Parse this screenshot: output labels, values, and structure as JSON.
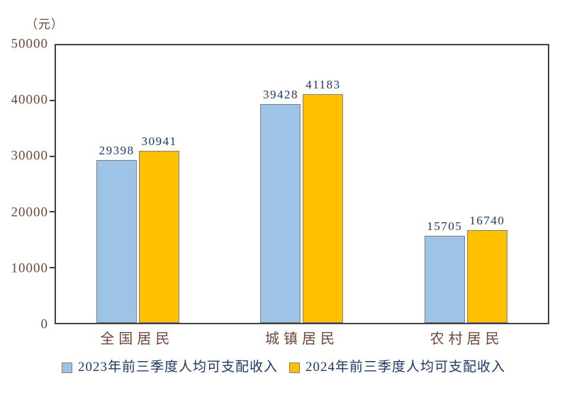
{
  "unit_label": "（元）",
  "colors": {
    "series_2023": "#9DC3E6",
    "series_2024": "#FFC000",
    "bar_border": "#7F7F7F",
    "axis_line": "#404040",
    "axis_text": "#6E463C",
    "value_label_text": "#1F3864",
    "legend_text": "#1F3864",
    "background": "#FFFFFF"
  },
  "chart_data": {
    "type": "bar",
    "title": "",
    "unit": "（元）",
    "categories": [
      "全国居民",
      "城镇居民",
      "农村居民"
    ],
    "series": [
      {
        "name": "2023年前三季度人均可支配收入",
        "color": "#9DC3E6",
        "values": [
          29398,
          39428,
          15705
        ]
      },
      {
        "name": "2024年前三季度人均可支配收入",
        "color": "#FFC000",
        "values": [
          30941,
          41183,
          16740
        ]
      }
    ],
    "xlabel": "",
    "ylabel": "（元）",
    "ylim": [
      0,
      50000
    ],
    "yticks": [
      0,
      10000,
      20000,
      30000,
      40000,
      50000
    ],
    "grid": false,
    "legend_position": "bottom",
    "data_labels": true
  }
}
